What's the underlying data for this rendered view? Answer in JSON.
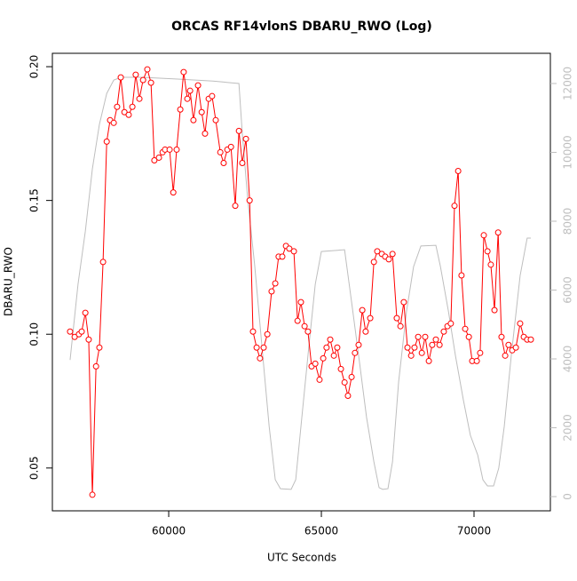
{
  "chart_data": {
    "type": "line",
    "title": "ORCAS RF14vlonS DBARU_RWO (Log)",
    "xlabel": "UTC Seconds",
    "ylabel": "DBARU_RWO",
    "xlim": [
      56190,
      72500
    ],
    "xticks": [
      60000,
      65000,
      70000
    ],
    "ylim": [
      0.034,
      0.205
    ],
    "yticks": [
      {
        "value": 0.05,
        "label": "0.05"
      },
      {
        "value": 0.1,
        "label": "0.10"
      },
      {
        "value": 0.15,
        "label": "0.15"
      },
      {
        "value": 0.2,
        "label": "0.20"
      }
    ],
    "y2lim": [
      -413,
      12877
    ],
    "y2ticks": [
      0,
      2000,
      4000,
      6000,
      8000,
      10000,
      12000
    ],
    "series": [
      {
        "color": "#ff0000",
        "markers": true,
        "x": [
          56770,
          56920,
          57060,
          57150,
          57270,
          57380,
          57500,
          57620,
          57730,
          57850,
          57970,
          58080,
          58200,
          58310,
          58430,
          58550,
          58690,
          58810,
          58920,
          59040,
          59160,
          59300,
          59420,
          59530,
          59680,
          59800,
          59880,
          60030,
          60150,
          60260,
          60380,
          60490,
          60610,
          60700,
          60810,
          60960,
          61080,
          61190,
          61310,
          61420,
          61540,
          61690,
          61800,
          61920,
          62040,
          62180,
          62300,
          62410,
          62530,
          62650,
          62760,
          62880,
          62990,
          63110,
          63230,
          63370,
          63490,
          63600,
          63720,
          63840,
          63950,
          64100,
          64220,
          64330,
          64450,
          64560,
          64680,
          64800,
          64940,
          65060,
          65170,
          65290,
          65410,
          65520,
          65640,
          65760,
          65870,
          65990,
          66100,
          66220,
          66340,
          66450,
          66600,
          66720,
          66830,
          66980,
          67090,
          67210,
          67330,
          67470,
          67590,
          67700,
          67820,
          67940,
          68050,
          68170,
          68290,
          68400,
          68520,
          68630,
          68750,
          68870,
          69010,
          69130,
          69240,
          69360,
          69480,
          69590,
          69710,
          69830,
          69940,
          70090,
          70200,
          70320,
          70440,
          70550,
          70670,
          70790,
          70900,
          71020,
          71130,
          71250,
          71370,
          71510,
          71630,
          71740,
          71860
        ],
        "values": [
          0.101,
          0.099,
          0.1,
          0.101,
          0.108,
          0.098,
          0.04,
          0.088,
          0.095,
          0.127,
          0.172,
          0.18,
          0.179,
          0.185,
          0.196,
          0.183,
          0.182,
          0.185,
          0.197,
          0.188,
          0.195,
          0.199,
          0.194,
          0.165,
          0.166,
          0.168,
          0.169,
          0.169,
          0.153,
          0.169,
          0.184,
          0.198,
          0.188,
          0.191,
          0.18,
          0.193,
          0.183,
          0.175,
          0.188,
          0.189,
          0.18,
          0.168,
          0.164,
          0.169,
          0.17,
          0.148,
          0.176,
          0.164,
          0.173,
          0.15,
          0.101,
          0.095,
          0.091,
          0.095,
          0.1,
          0.116,
          0.119,
          0.129,
          0.129,
          0.133,
          0.132,
          0.131,
          0.105,
          0.112,
          0.103,
          0.101,
          0.088,
          0.089,
          0.083,
          0.091,
          0.095,
          0.098,
          0.092,
          0.095,
          0.087,
          0.082,
          0.077,
          0.084,
          0.093,
          0.096,
          0.109,
          0.101,
          0.106,
          0.127,
          0.131,
          0.13,
          0.129,
          0.128,
          0.13,
          0.106,
          0.103,
          0.112,
          0.095,
          0.092,
          0.095,
          0.099,
          0.093,
          0.099,
          0.09,
          0.096,
          0.098,
          0.096,
          0.101,
          0.103,
          0.104,
          0.148,
          0.161,
          0.122,
          0.102,
          0.099,
          0.09,
          0.09,
          0.093,
          0.137,
          0.131,
          0.126,
          0.109,
          0.138,
          0.099,
          0.092,
          0.096,
          0.094,
          0.095,
          0.104,
          0.099,
          0.098,
          0.098
        ]
      },
      {
        "color": "#bebebe",
        "markers": false,
        "axis": "y2",
        "x": [
          56770,
          57030,
          57270,
          57500,
          57730,
          57970,
          58200,
          58430,
          59130,
          60290,
          61450,
          62300,
          62410,
          62590,
          62820,
          63080,
          63290,
          63490,
          63660,
          64010,
          64160,
          64360,
          64590,
          64800,
          65000,
          65760,
          65990,
          66220,
          66480,
          66720,
          66890,
          67010,
          67180,
          67330,
          67530,
          67790,
          68020,
          68260,
          68750,
          68900,
          69160,
          69390,
          69650,
          69880,
          70120,
          70290,
          70440,
          70640,
          70810,
          70990,
          71220,
          71510,
          71740,
          71860
        ],
        "values": [
          3970,
          6170,
          7710,
          9520,
          10810,
          11710,
          12100,
          12180,
          12180,
          12130,
          12070,
          12000,
          10550,
          8620,
          6680,
          4100,
          2040,
          490,
          230,
          210,
          490,
          2300,
          4360,
          6170,
          7120,
          7170,
          5650,
          4100,
          2300,
          1010,
          260,
          210,
          230,
          1010,
          3330,
          5390,
          6680,
          7280,
          7300,
          6680,
          5390,
          4100,
          2810,
          1780,
          1210,
          490,
          310,
          310,
          830,
          2040,
          4100,
          6420,
          7510,
          7510
        ]
      }
    ]
  }
}
